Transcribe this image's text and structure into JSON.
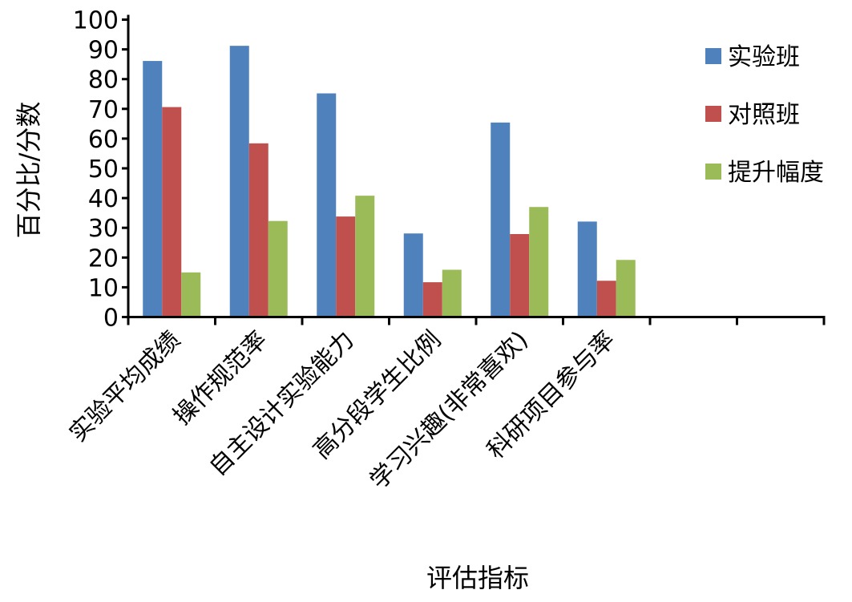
{
  "chart_data": {
    "type": "bar",
    "title": "",
    "xlabel": "评估指标",
    "ylabel": "百分比/分数",
    "ylim": [
      0,
      100
    ],
    "yticks": [
      0,
      10,
      20,
      30,
      40,
      50,
      60,
      70,
      80,
      90,
      100
    ],
    "categories": [
      "实验平均成绩",
      "操作规范率",
      "自主设计实验能力",
      "高分段学生比例",
      "学习兴趣(非常喜欢)",
      "科研项目参与率",
      "",
      ""
    ],
    "series": [
      {
        "name": "实验班",
        "color": "#4F81BD",
        "values": [
          86.1,
          91.2,
          75.2,
          28.1,
          65.4,
          32.1,
          null,
          null
        ]
      },
      {
        "name": "对照班",
        "color": "#C0504D",
        "values": [
          70.6,
          58.4,
          33.8,
          11.7,
          27.9,
          12.2,
          null,
          null
        ]
      },
      {
        "name": "提升幅度",
        "color": "#9BBB59",
        "values": [
          15.0,
          32.3,
          40.8,
          15.9,
          37.0,
          19.2,
          null,
          null
        ]
      }
    ],
    "grid": false,
    "legend": "right"
  }
}
